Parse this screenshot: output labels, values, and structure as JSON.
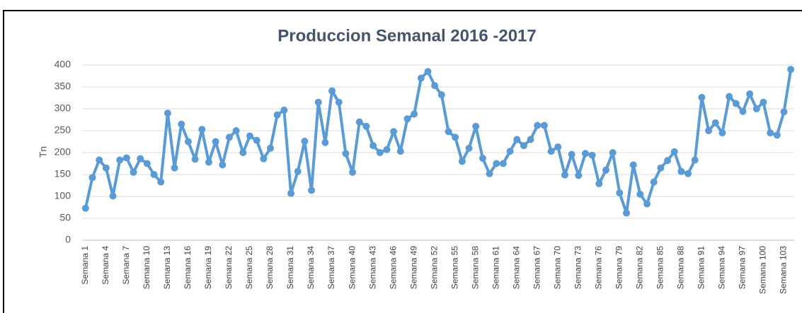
{
  "chart_data": {
    "type": "line",
    "title": "Produccion Semanal 2016 -2017",
    "y_label": "Tn",
    "categories": [
      "Semana 1",
      null,
      null,
      "Semana 4",
      null,
      null,
      "Semana 7",
      null,
      null,
      "Semana 10",
      null,
      null,
      "Semana 13",
      null,
      null,
      "Semana 16",
      null,
      null,
      "Semana 19",
      null,
      null,
      "Semana 22",
      null,
      null,
      "Semana 25",
      null,
      null,
      "Semana 28",
      null,
      null,
      "Semana 31",
      null,
      null,
      "Semana 34",
      null,
      null,
      "Semana 37",
      null,
      null,
      "Semana 40",
      null,
      null,
      "Semana 43",
      null,
      null,
      "Semana 46",
      null,
      null,
      "Semana 49",
      null,
      null,
      "Semana 52",
      null,
      null,
      "Semana 55",
      null,
      null,
      "Semana 58",
      null,
      null,
      "Semana 61",
      null,
      null,
      "Semana 64",
      null,
      null,
      "Semana 67",
      null,
      null,
      "Semana 70",
      null,
      null,
      "Semana 73",
      null,
      null,
      "Semana 76",
      null,
      null,
      "Semana 79",
      null,
      null,
      "Semana 82",
      null,
      null,
      "Semana 85",
      null,
      null,
      "Semana 88",
      null,
      null,
      "Semana 91",
      null,
      null,
      "Semana 94",
      null,
      null,
      "Semana 97",
      null,
      null,
      "Semana 100",
      null,
      null,
      "Semana 103",
      null
    ],
    "series": [
      {
        "name": "Tn",
        "color": "#5b9bd5",
        "values": [
          73,
          143,
          183,
          165,
          101,
          183,
          188,
          155,
          186,
          175,
          150,
          133,
          290,
          165,
          265,
          225,
          185,
          253,
          178,
          225,
          172,
          235,
          250,
          200,
          238,
          228,
          186,
          210,
          286,
          297,
          107,
          157,
          226,
          114,
          315,
          223,
          341,
          315,
          198,
          155,
          270,
          260,
          216,
          200,
          207,
          248,
          203,
          277,
          288,
          370,
          385,
          353,
          332,
          248,
          235,
          180,
          210,
          260,
          187,
          152,
          175,
          175,
          203,
          230,
          216,
          230,
          262,
          262,
          203,
          213,
          149,
          196,
          148,
          198,
          194,
          129,
          160,
          200,
          108,
          62,
          172,
          105,
          83,
          133,
          165,
          182,
          202,
          157,
          152,
          183,
          326,
          250,
          268,
          245,
          328,
          312,
          294,
          334,
          300,
          315,
          245,
          240,
          293,
          390
        ]
      }
    ],
    "ylim": [
      0,
      400
    ],
    "yticks": [
      0,
      50,
      100,
      150,
      200,
      250,
      300,
      350,
      400
    ],
    "grid": true
  }
}
